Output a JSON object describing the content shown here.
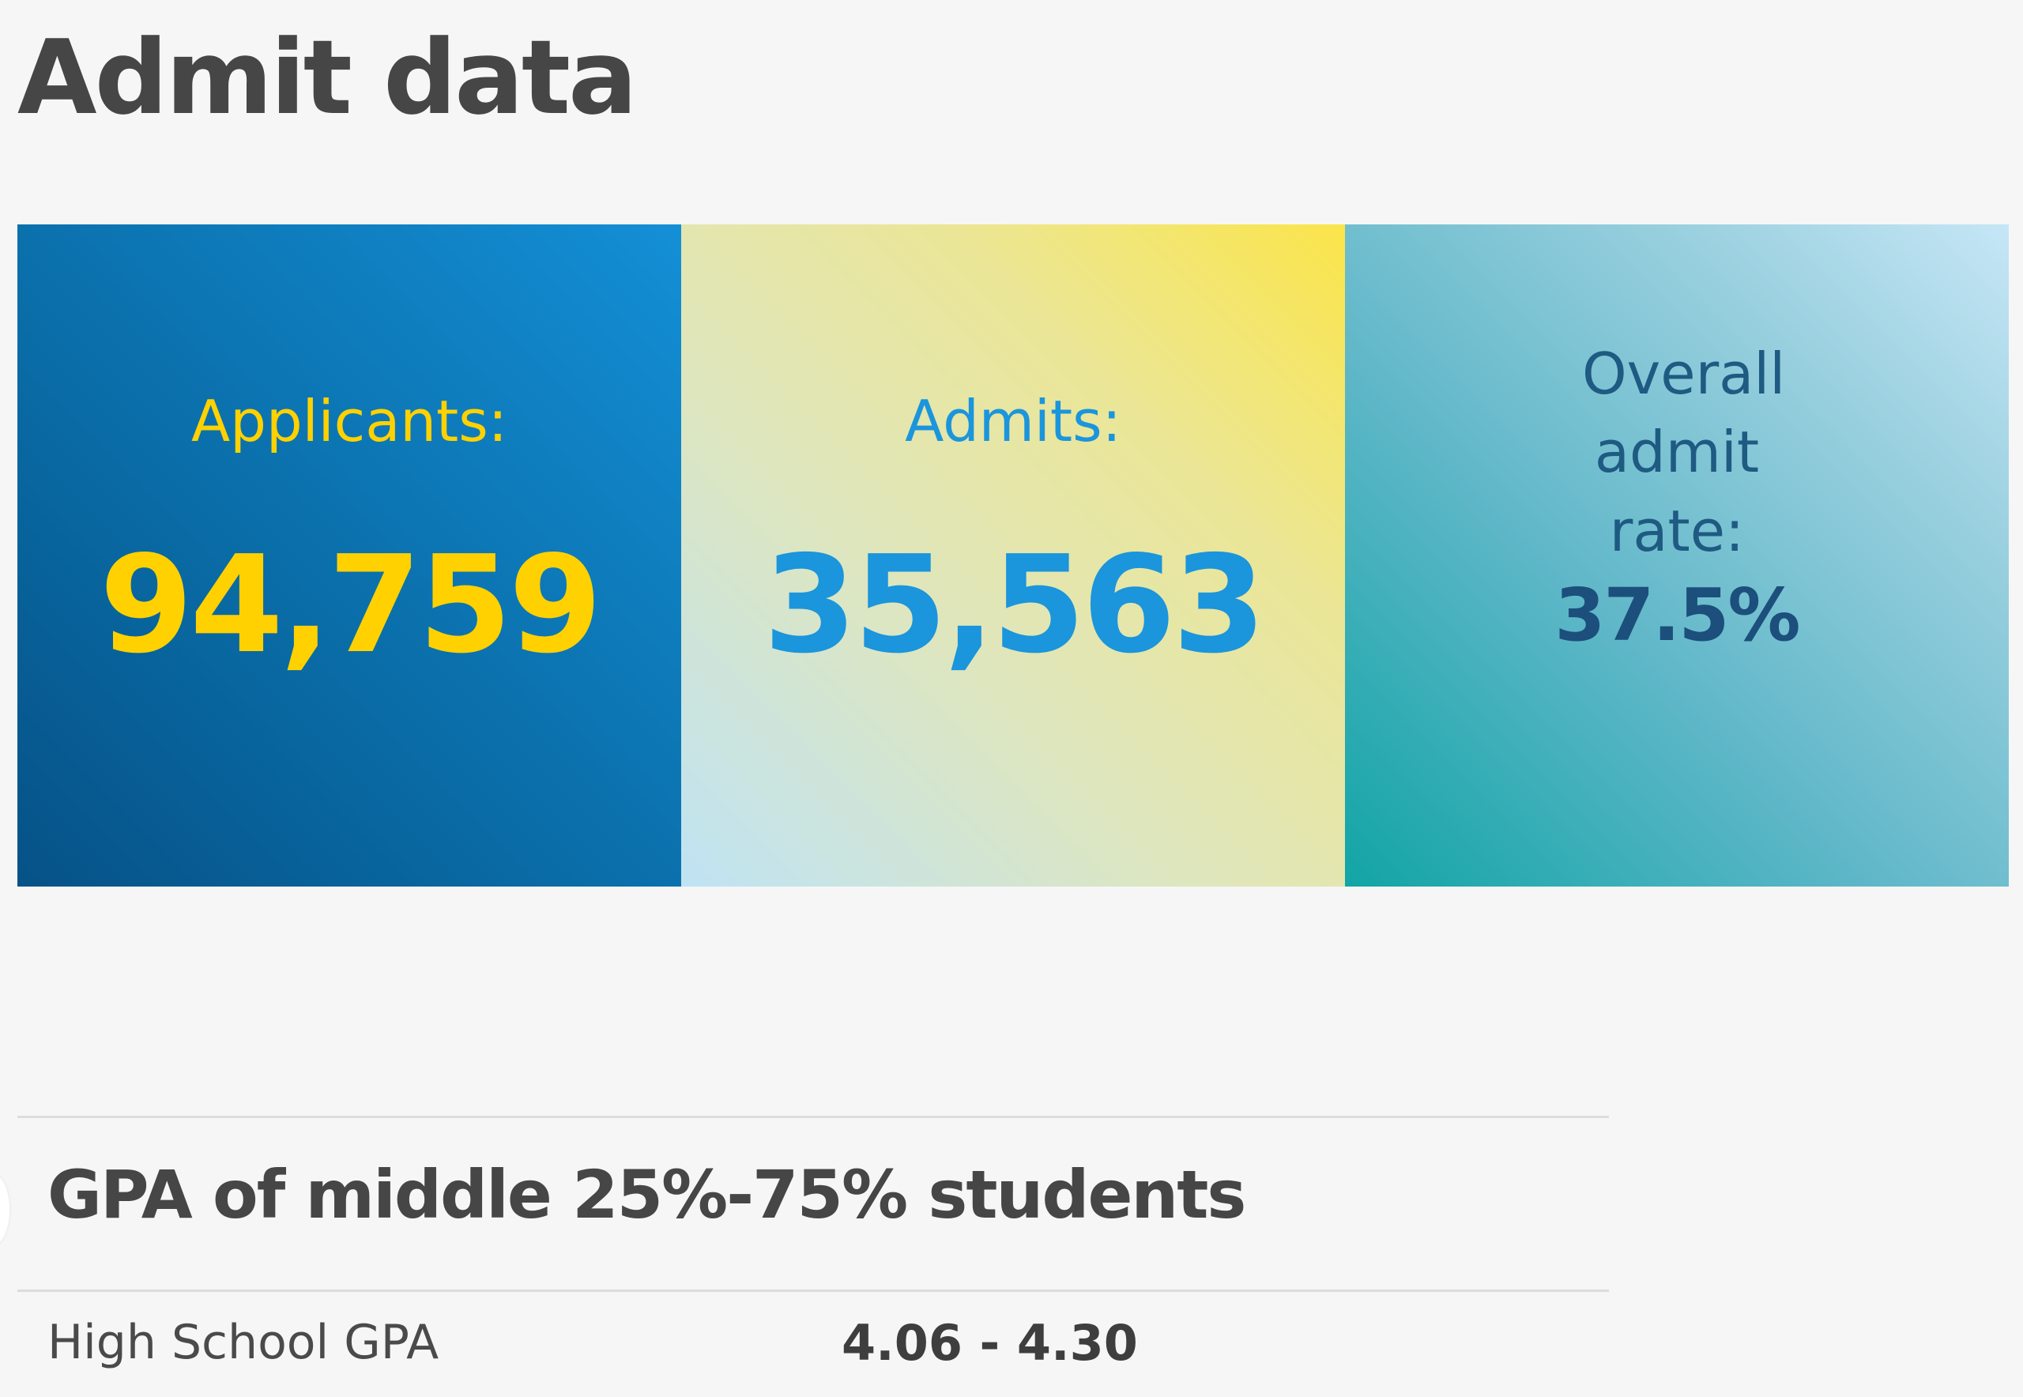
{
  "page": {
    "title": "Admit data"
  },
  "stats": {
    "applicants": {
      "label": "Applicants:",
      "value": "94,759"
    },
    "admits": {
      "label": "Admits:",
      "value": "35,563"
    },
    "admit_rate": {
      "label": "Overall admit rate:",
      "value": "37.5%"
    }
  },
  "gpa_section": {
    "title": "GPA of middle 25%-75% students",
    "rows": [
      {
        "label": "High School GPA",
        "value": "4.06 - 4.30"
      }
    ]
  },
  "colors": {
    "title_text": "#464646",
    "applicants_bg": "#0a6ea9",
    "applicants_text": "#ffd100",
    "admits_bg": "#ebe696",
    "admits_text": "#1b95dc",
    "rate_bg": "#9ad0df",
    "rate_text": "#1c4f7c"
  }
}
